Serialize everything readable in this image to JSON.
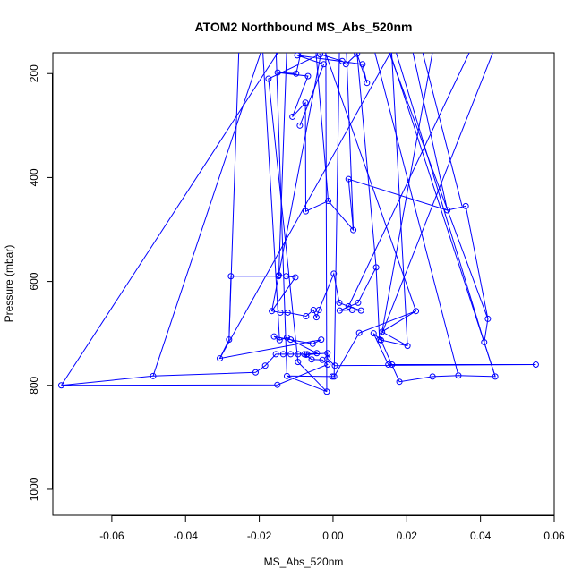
{
  "chart_data": {
    "type": "line",
    "title": "ATOM2 Northbound MS_Abs_520nm",
    "xlabel": "MS_Abs_520nm",
    "ylabel": "Pressure (mbar)",
    "xlim": [
      -0.076,
      0.06
    ],
    "ylim": [
      1050,
      160
    ],
    "y_reversed": true,
    "x_ticks": [
      -0.06,
      -0.04,
      -0.02,
      0.0,
      0.02,
      0.04,
      0.06
    ],
    "x_tick_labels": [
      "-0.06",
      "-0.04",
      "-0.02",
      "0.00",
      "0.02",
      "0.04",
      "0.06"
    ],
    "y_ticks": [
      200,
      400,
      600,
      800,
      1000
    ],
    "y_tick_labels": [
      "200",
      "400",
      "600",
      "800",
      "1000"
    ],
    "grid": false,
    "legend": "none",
    "marker": "open-circle",
    "line_color": "#0000ff",
    "series": [
      {
        "points": [
          [
            -0.005,
            40
          ],
          [
            -0.01,
            200
          ],
          [
            -0.015,
            198
          ],
          [
            -0.0068,
            205
          ],
          [
            -0.011,
            283
          ],
          [
            -0.0075,
            256
          ],
          [
            -0.0074,
            465
          ],
          [
            -0.0013,
            445
          ],
          [
            0.0055,
            501
          ],
          [
            0.0042,
            403
          ],
          [
            0.031,
            463
          ],
          [
            0.036,
            455
          ],
          [
            0.042,
            672
          ],
          [
            0.041,
            717
          ],
          [
            0.044,
            783
          ],
          [
            0.034,
            781
          ],
          [
            0.027,
            783
          ],
          [
            0.018,
            793
          ],
          [
            0.013,
            713
          ],
          [
            0.011,
            700
          ],
          [
            0.015,
            760
          ],
          [
            0.016,
            760
          ],
          [
            0.055,
            760
          ],
          [
            0.0005,
            762
          ],
          [
            -0.0015,
            749
          ],
          [
            -0.0015,
            738
          ],
          [
            -0.0073,
            741
          ],
          [
            -0.0078,
            740
          ],
          [
            -0.0058,
            750
          ],
          [
            -0.0029,
            751
          ],
          [
            -0.0015,
            760
          ],
          [
            -0.0151,
            799
          ],
          [
            -0.0737,
            800
          ],
          [
            -0.0488,
            782
          ],
          [
            -0.021,
            775
          ],
          [
            -0.0184,
            762
          ],
          [
            -0.0155,
            740
          ],
          [
            -0.0135,
            740
          ],
          [
            -0.0115,
            740
          ],
          [
            -0.0095,
            740
          ],
          [
            -0.007,
            740
          ],
          [
            -0.0044,
            738
          ],
          [
            -0.0115,
            712
          ],
          [
            -0.0125,
            708
          ],
          [
            -0.0145,
            713
          ],
          [
            -0.016,
            706
          ],
          [
            -0.0055,
            720
          ],
          [
            -0.0032,
            712
          ],
          [
            -0.0307,
            748
          ],
          [
            -0.0282,
            712
          ],
          [
            -0.0277,
            590
          ],
          [
            -0.0148,
            590
          ],
          [
            -0.0147,
            588
          ],
          [
            -0.0127,
            590
          ],
          [
            -0.0102,
            592
          ],
          [
            -0.0166,
            657
          ],
          [
            -0.0143,
            660
          ],
          [
            -0.0123,
            660
          ],
          [
            -0.0073,
            667
          ],
          [
            -0.0053,
            655
          ],
          [
            -0.0045,
            669
          ],
          [
            -0.0038,
            655
          ],
          [
            0.0002,
            585
          ],
          [
            0.0017,
            641
          ],
          [
            0.0042,
            648
          ],
          [
            0.0076,
            656
          ],
          [
            0.0052,
            655
          ],
          [
            0.0018,
            656
          ],
          [
            0.0068,
            641
          ],
          [
            0.0117,
            573
          ],
          [
            0.0126,
            712
          ],
          [
            0.0202,
            724
          ],
          [
            0.0133,
            697
          ],
          [
            0.0225,
            657
          ],
          [
            0.0071,
            699
          ],
          [
            0.0003,
            783
          ],
          [
            -0.0002,
            783
          ],
          [
            -0.0125,
            782
          ],
          [
            -0.0017,
            812
          ],
          [
            -0.0095,
            755
          ],
          [
            -0.0175,
            210
          ],
          [
            -0.0035,
            163
          ],
          [
            0.0025,
            176
          ],
          [
            0.0035,
            182
          ],
          [
            0.0065,
            162
          ],
          [
            0.0092,
            218
          ],
          [
            0.008,
            182
          ],
          [
            -0.0097,
            165
          ],
          [
            -0.0025,
            182
          ],
          [
            -0.009,
            300
          ]
        ]
      }
    ],
    "extra_segments": [
      [
        [
          -0.004,
          40
        ],
        [
          -0.0737,
          800
        ]
      ],
      [
        [
          0.01,
          40
        ],
        [
          0.044,
          783
        ]
      ],
      [
        [
          0.02,
          40
        ],
        [
          0.035,
          455
        ]
      ],
      [
        [
          0.03,
          40
        ],
        [
          0.0133,
          697
        ]
      ],
      [
        [
          0.045,
          40
        ],
        [
          0.0042,
          648
        ]
      ],
      [
        [
          0.05,
          40
        ],
        [
          0.0126,
          712
        ]
      ],
      [
        [
          -0.025,
          40
        ],
        [
          -0.0282,
          712
        ]
      ],
      [
        [
          -0.02,
          40
        ],
        [
          -0.0145,
          713
        ]
      ],
      [
        [
          -0.012,
          40
        ],
        [
          -0.0147,
          588
        ]
      ],
      [
        [
          0.0,
          40
        ],
        [
          -0.0166,
          657
        ]
      ],
      [
        [
          0.015,
          40
        ],
        [
          0.0202,
          724
        ]
      ],
      [
        [
          0.025,
          40
        ],
        [
          -0.0307,
          748
        ]
      ],
      [
        [
          -0.008,
          40
        ],
        [
          0.0225,
          657
        ]
      ],
      [
        [
          0.005,
          40
        ],
        [
          0.0117,
          573
        ]
      ],
      [
        [
          0.009,
          40
        ],
        [
          0.042,
          672
        ]
      ],
      [
        [
          0.012,
          40
        ],
        [
          0.041,
          717
        ]
      ],
      [
        [
          -0.006,
          40
        ],
        [
          -0.0013,
          445
        ]
      ],
      [
        [
          0.003,
          40
        ],
        [
          0.0055,
          501
        ]
      ],
      [
        [
          -0.014,
          40
        ],
        [
          -0.0488,
          782
        ]
      ],
      [
        [
          0.007,
          40
        ],
        [
          0.034,
          781
        ]
      ],
      [
        [
          0.018,
          40
        ],
        [
          0.031,
          463
        ]
      ],
      [
        [
          -0.016,
          40
        ],
        [
          -0.0125,
          782
        ]
      ],
      [
        [
          0.002,
          40
        ],
        [
          0.0003,
          783
        ]
      ],
      [
        [
          -0.002,
          40
        ],
        [
          -0.0017,
          812
        ]
      ]
    ]
  }
}
